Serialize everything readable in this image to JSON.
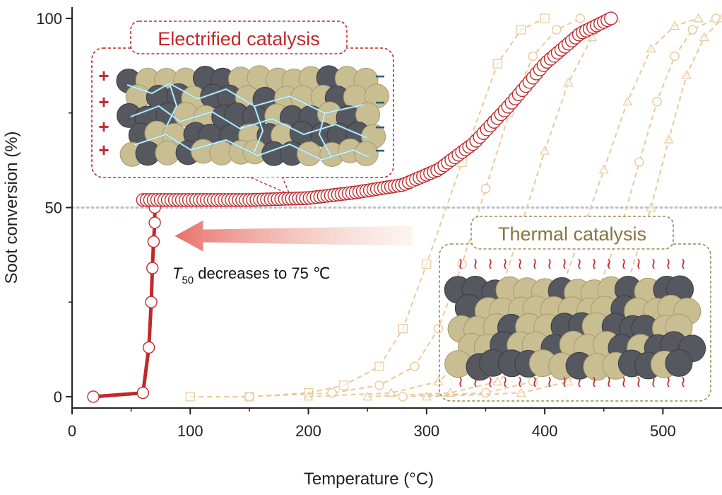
{
  "colors": {
    "electrified": "#c0292b",
    "thermal": "#a08850",
    "thermal_lines": "#e9c99a",
    "dashed_ref": "#b9c0cc",
    "particle_dark": "#55585e",
    "particle_light": "#c9bd92",
    "lightning": "#5fd0ff"
  },
  "chart_data": {
    "type": "line",
    "title": "",
    "xlabel": "Temperature (°C)",
    "ylabel": "Soot conversion (%)",
    "xlim": [
      0,
      550
    ],
    "ylim": [
      -3,
      103
    ],
    "x_ticks": [
      0,
      100,
      200,
      300,
      400,
      500
    ],
    "y_ticks": [
      0,
      50,
      100
    ],
    "grid": false,
    "reference_line": {
      "y": 50,
      "style": "dotted"
    },
    "series": [
      {
        "marker": "circle",
        "style": "solid",
        "x": [
          18,
          60,
          65,
          67,
          68,
          69,
          70,
          70
        ],
        "y": [
          0,
          1,
          13,
          25,
          34,
          41,
          46,
          50
        ]
      },
      {
        "marker": "circle",
        "style": "dense",
        "x": [
          60,
          100,
          150,
          200,
          240,
          280,
          310,
          340,
          370,
          400,
          430,
          456
        ],
        "y": [
          52,
          52,
          52,
          52.5,
          54,
          56,
          60,
          67,
          77,
          88,
          96,
          100
        ]
      },
      {
        "marker": "square",
        "style": "dashed",
        "x": [
          100,
          150,
          200,
          230,
          260,
          280,
          300,
          330,
          360,
          380,
          400
        ],
        "y": [
          0,
          0,
          1,
          3,
          8,
          18,
          35,
          62,
          88,
          97,
          100
        ]
      },
      {
        "marker": "circle",
        "style": "dashed",
        "x": [
          150,
          220,
          260,
          290,
          310,
          330,
          350,
          370,
          390,
          410,
          430
        ],
        "y": [
          0,
          1,
          3,
          8,
          18,
          35,
          55,
          75,
          90,
          97,
          100
        ]
      },
      {
        "marker": "triangle",
        "style": "dashed",
        "x": [
          200,
          270,
          310,
          340,
          360,
          380,
          400,
          420,
          440,
          460
        ],
        "y": [
          0,
          1,
          4,
          12,
          25,
          45,
          65,
          83,
          95,
          100
        ]
      },
      {
        "marker": "triangle",
        "style": "dashed",
        "x": [
          250,
          320,
          360,
          390,
          410,
          430,
          450,
          470,
          490,
          510,
          530
        ],
        "y": [
          0,
          1,
          4,
          12,
          25,
          42,
          60,
          78,
          92,
          98,
          100
        ]
      },
      {
        "marker": "circle",
        "style": "dashed",
        "x": [
          280,
          350,
          390,
          420,
          445,
          465,
          480,
          495,
          510,
          525,
          545
        ],
        "y": [
          0,
          1,
          4,
          12,
          28,
          45,
          62,
          78,
          90,
          97,
          100
        ]
      },
      {
        "marker": "triangle",
        "style": "dashed",
        "x": [
          300,
          380,
          420,
          450,
          470,
          490,
          505,
          520,
          535,
          550
        ],
        "y": [
          0,
          1,
          4,
          14,
          30,
          50,
          68,
          85,
          95,
          100
        ]
      }
    ],
    "annotations": {
      "electrified_title": "Electrified catalysis",
      "thermal_title": "Thermal catalysis",
      "t50_symbol": "T",
      "t50_subscript": "50",
      "t50_text": " decreases to 75  ℃",
      "plus_sign": "+",
      "minus_sign": "−",
      "heat_glyph": "≀",
      "arrow_from_temperature": 300,
      "arrow_to_temperature": 75,
      "arrow_level": 41
    }
  }
}
